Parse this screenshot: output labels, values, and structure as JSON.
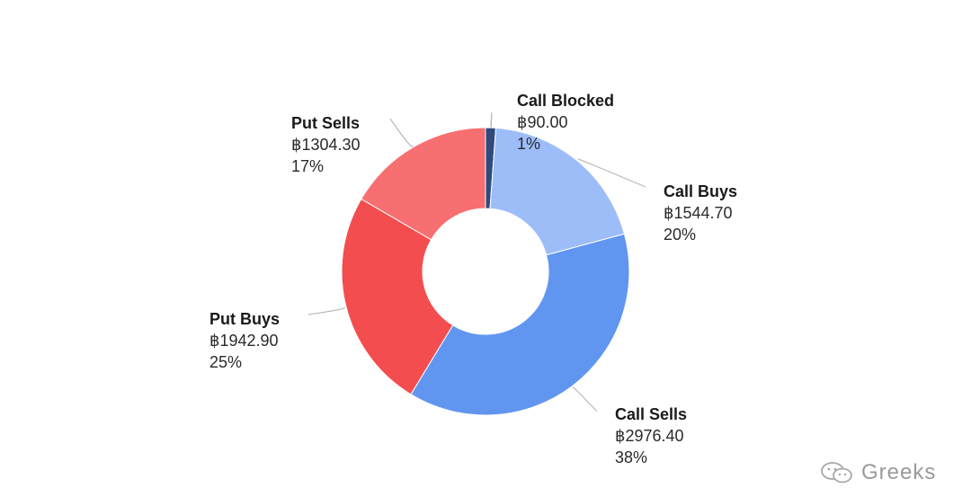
{
  "chart_data": {
    "type": "pie",
    "style": "donut",
    "slices": [
      {
        "name": "Call Blocked",
        "value": 90.0,
        "value_label": "฿90.00",
        "percent_label": "1%",
        "color": "#2f4a7c"
      },
      {
        "name": "Call Buys",
        "value": 1544.7,
        "value_label": "฿1544.70",
        "percent_label": "20%",
        "color": "#9dbdf8"
      },
      {
        "name": "Call Sells",
        "value": 2976.4,
        "value_label": "฿2976.40",
        "percent_label": "38%",
        "color": "#6196f0"
      },
      {
        "name": "Put Buys",
        "value": 1942.9,
        "value_label": "฿1942.90",
        "percent_label": "25%",
        "color": "#f34d4f"
      },
      {
        "name": "Put Sells",
        "value": 1304.3,
        "value_label": "฿1304.30",
        "percent_label": "17%",
        "color": "#f76f70"
      }
    ],
    "legend": "none"
  },
  "watermark": {
    "text": "Greeks",
    "icon": "wechat-icon"
  }
}
